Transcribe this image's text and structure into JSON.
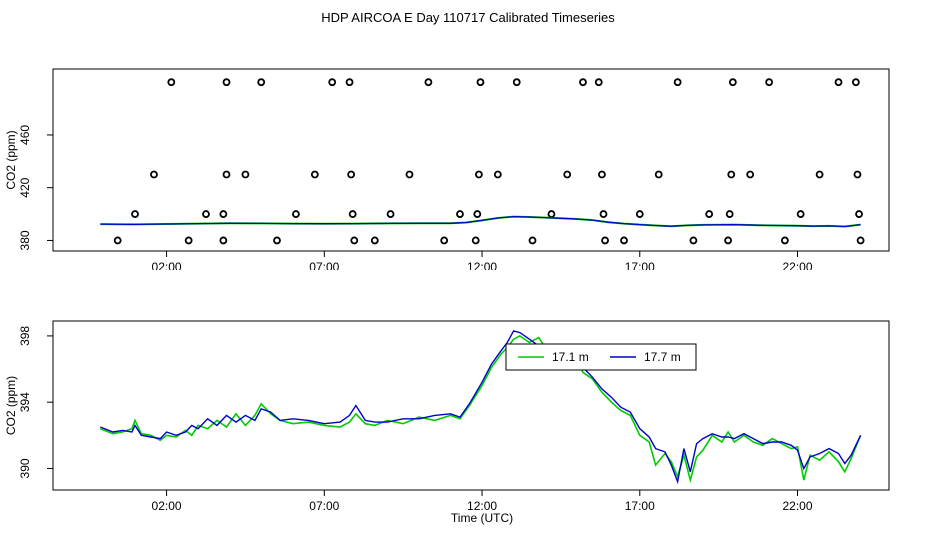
{
  "page": {
    "title": "HDP AIRCOA E  Day 110717  Calibrated Timeseries"
  },
  "colors": {
    "series_a": "#00cc00",
    "series_b": "#0000cc",
    "ink": "#000000"
  },
  "chart_data": [
    {
      "type": "scatter",
      "xlabel": "Time (UTC)",
      "ylabel": "CO2 (ppm)",
      "xlim_hours": [
        -1.6,
        24.9
      ],
      "ylim": [
        372,
        510
      ],
      "x_ticks": [
        {
          "v": 2,
          "label": "02:00"
        },
        {
          "v": 7,
          "label": "07:00"
        },
        {
          "v": 12,
          "label": "12:00"
        },
        {
          "v": 17,
          "label": "17:00"
        },
        {
          "v": 22,
          "label": "22:00"
        }
      ],
      "y_ticks": [
        {
          "v": 380,
          "label": "380"
        },
        {
          "v": 420,
          "label": "420"
        },
        {
          "v": 460,
          "label": "460"
        }
      ],
      "circles": [
        [
          0.45,
          380
        ],
        [
          1.0,
          400
        ],
        [
          1.6,
          430
        ],
        [
          2.15,
          500
        ],
        [
          2.7,
          380
        ],
        [
          3.25,
          400
        ],
        [
          3.8,
          380
        ],
        [
          3.8,
          400
        ],
        [
          3.9,
          430
        ],
        [
          3.9,
          500
        ],
        [
          4.5,
          430
        ],
        [
          5.0,
          500
        ],
        [
          5.5,
          380
        ],
        [
          6.1,
          400
        ],
        [
          6.7,
          430
        ],
        [
          7.25,
          500
        ],
        [
          7.8,
          500
        ],
        [
          7.85,
          430
        ],
        [
          7.9,
          400
        ],
        [
          7.95,
          380
        ],
        [
          8.6,
          380
        ],
        [
          9.1,
          400
        ],
        [
          9.7,
          430
        ],
        [
          10.3,
          500
        ],
        [
          10.8,
          380
        ],
        [
          11.3,
          400
        ],
        [
          11.8,
          380
        ],
        [
          11.85,
          400
        ],
        [
          11.9,
          430
        ],
        [
          11.95,
          500
        ],
        [
          12.5,
          430
        ],
        [
          13.1,
          500
        ],
        [
          13.6,
          380
        ],
        [
          14.2,
          400
        ],
        [
          14.7,
          430
        ],
        [
          15.2,
          500
        ],
        [
          15.7,
          500
        ],
        [
          15.8,
          430
        ],
        [
          15.85,
          400
        ],
        [
          15.9,
          380
        ],
        [
          16.5,
          380
        ],
        [
          17.0,
          400
        ],
        [
          17.6,
          430
        ],
        [
          18.2,
          500
        ],
        [
          18.7,
          380
        ],
        [
          19.2,
          400
        ],
        [
          19.8,
          380
        ],
        [
          19.85,
          400
        ],
        [
          19.9,
          430
        ],
        [
          19.95,
          500
        ],
        [
          20.5,
          430
        ],
        [
          21.1,
          500
        ],
        [
          21.6,
          380
        ],
        [
          22.1,
          400
        ],
        [
          22.7,
          430
        ],
        [
          23.3,
          500
        ],
        [
          23.85,
          500
        ],
        [
          23.9,
          430
        ],
        [
          23.95,
          400
        ],
        [
          24.0,
          380
        ]
      ],
      "line": [
        [
          -0.1,
          392.4
        ],
        [
          1,
          392.2
        ],
        [
          2,
          392.5
        ],
        [
          3,
          392.8
        ],
        [
          4,
          393.0
        ],
        [
          5,
          392.9
        ],
        [
          6,
          392.8
        ],
        [
          7,
          392.7
        ],
        [
          8,
          392.8
        ],
        [
          9,
          392.9
        ],
        [
          10,
          393.0
        ],
        [
          11,
          393.0
        ],
        [
          11.5,
          393.6
        ],
        [
          12,
          395.2
        ],
        [
          12.5,
          397.0
        ],
        [
          13,
          398.1
        ],
        [
          13.5,
          397.8
        ],
        [
          14,
          397.3
        ],
        [
          14.5,
          396.8
        ],
        [
          15,
          396.3
        ],
        [
          15.5,
          395.4
        ],
        [
          16,
          393.8
        ],
        [
          16.5,
          392.8
        ],
        [
          17,
          392.0
        ],
        [
          17.5,
          391.3
        ],
        [
          18,
          390.8
        ],
        [
          18.5,
          391.4
        ],
        [
          19,
          391.8
        ],
        [
          20,
          392.0
        ],
        [
          21,
          391.4
        ],
        [
          22,
          391.2
        ],
        [
          22.5,
          390.9
        ],
        [
          23,
          391.0
        ],
        [
          23.5,
          390.6
        ],
        [
          24.0,
          392.0
        ]
      ]
    },
    {
      "type": "line",
      "xlabel": "Time (UTC)",
      "ylabel": "CO2 (ppm)",
      "xlim_hours": [
        -1.6,
        24.9
      ],
      "ylim": [
        388.7,
        398.9
      ],
      "x_ticks": [
        {
          "v": 2,
          "label": "02:00"
        },
        {
          "v": 7,
          "label": "07:00"
        },
        {
          "v": 12,
          "label": "12:00"
        },
        {
          "v": 17,
          "label": "17:00"
        },
        {
          "v": 22,
          "label": "22:00"
        }
      ],
      "y_ticks": [
        {
          "v": 390,
          "label": "390"
        },
        {
          "v": 394,
          "label": "394"
        },
        {
          "v": 398,
          "label": "398"
        }
      ],
      "legend": {
        "position": "top-center"
      },
      "x": [
        -0.1,
        0.3,
        0.6,
        0.9,
        1.0,
        1.2,
        1.5,
        1.8,
        2.0,
        2.3,
        2.6,
        2.8,
        3.0,
        3.3,
        3.6,
        3.9,
        4.2,
        4.5,
        4.8,
        5.0,
        5.3,
        5.6,
        6.0,
        6.5,
        7.0,
        7.5,
        7.8,
        8.0,
        8.3,
        8.6,
        9.0,
        9.5,
        10.0,
        10.5,
        11.0,
        11.3,
        11.6,
        12.0,
        12.3,
        12.6,
        12.8,
        13.0,
        13.2,
        13.5,
        13.8,
        14.0,
        14.3,
        14.6,
        14.9,
        15.2,
        15.5,
        15.8,
        16.1,
        16.4,
        16.7,
        17.0,
        17.3,
        17.5,
        17.8,
        18.0,
        18.2,
        18.4,
        18.6,
        18.8,
        19.0,
        19.3,
        19.6,
        19.8,
        20.0,
        20.3,
        20.6,
        20.9,
        21.2,
        21.5,
        21.8,
        22.0,
        22.2,
        22.4,
        22.7,
        23.0,
        23.3,
        23.5,
        23.7,
        24.0
      ],
      "series": [
        {
          "name": "17.1 m",
          "values": [
            392.4,
            392.1,
            392.2,
            392.4,
            392.9,
            392.1,
            392.0,
            391.7,
            392.0,
            391.9,
            392.3,
            392.0,
            392.6,
            392.4,
            392.9,
            392.5,
            393.3,
            392.6,
            393.2,
            393.9,
            393.3,
            392.9,
            392.7,
            392.8,
            392.6,
            392.5,
            392.8,
            393.3,
            392.7,
            392.6,
            392.9,
            392.7,
            393.1,
            392.9,
            393.2,
            393.0,
            393.8,
            395.0,
            396.1,
            396.9,
            397.3,
            397.8,
            398.0,
            397.6,
            397.9,
            397.3,
            397.1,
            396.3,
            396.9,
            395.8,
            395.4,
            394.6,
            394.0,
            393.5,
            393.2,
            392.0,
            391.6,
            390.2,
            390.9,
            390.4,
            389.5,
            390.8,
            389.3,
            390.7,
            391.1,
            392.0,
            391.6,
            392.2,
            391.6,
            392.0,
            391.6,
            391.4,
            391.8,
            391.5,
            391.2,
            391.3,
            389.3,
            390.8,
            390.5,
            391.0,
            390.4,
            389.8,
            390.6,
            392.0
          ]
        },
        {
          "name": "17.7 m",
          "values": [
            392.5,
            392.2,
            392.3,
            392.2,
            392.6,
            392.0,
            391.9,
            391.8,
            392.2,
            392.0,
            392.2,
            392.6,
            392.4,
            393.0,
            392.6,
            393.2,
            392.8,
            393.2,
            392.9,
            393.6,
            393.4,
            392.9,
            393.0,
            392.9,
            392.7,
            392.8,
            393.2,
            393.8,
            392.9,
            392.8,
            392.8,
            393.0,
            393.0,
            393.2,
            393.3,
            393.1,
            393.9,
            395.2,
            396.3,
            397.1,
            397.6,
            398.3,
            398.2,
            397.8,
            397.4,
            397.4,
            396.8,
            396.6,
            396.3,
            396.1,
            395.5,
            394.8,
            394.3,
            393.7,
            393.4,
            392.4,
            391.9,
            391.2,
            391.0,
            390.2,
            389.2,
            391.2,
            389.8,
            391.5,
            391.8,
            392.1,
            391.9,
            391.9,
            391.8,
            392.1,
            391.8,
            391.5,
            391.6,
            391.6,
            391.4,
            391.1,
            390.0,
            390.7,
            390.9,
            391.2,
            390.9,
            390.3,
            390.8,
            392.0
          ]
        }
      ]
    }
  ]
}
